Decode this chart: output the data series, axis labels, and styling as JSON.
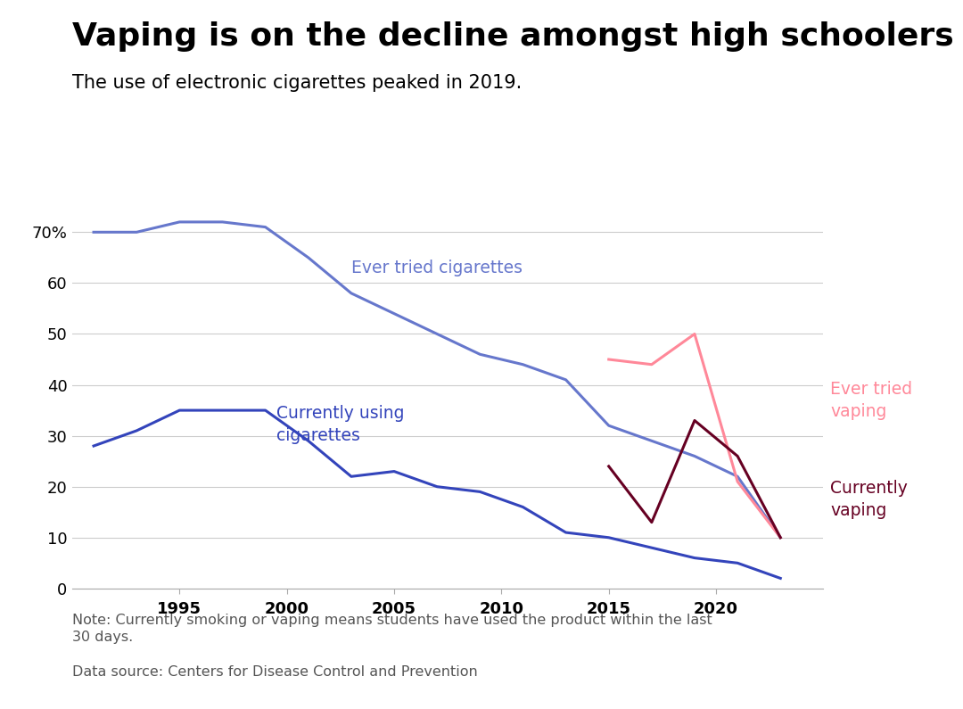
{
  "title": "Vaping is on the decline amongst high schoolers",
  "subtitle": "The use of electronic cigarettes peaked in 2019.",
  "note": "Note: Currently smoking or vaping means students have used the product within the last\n30 days.",
  "source": "Data source: Centers for Disease Control and Prevention",
  "ever_tried_cig_x": [
    1991,
    1993,
    1995,
    1997,
    1999,
    2001,
    2003,
    2005,
    2007,
    2009,
    2011,
    2013,
    2015,
    2017,
    2019,
    2021,
    2023
  ],
  "ever_tried_cig_y": [
    70,
    70,
    72,
    72,
    71,
    65,
    58,
    54,
    50,
    46,
    44,
    41,
    32,
    29,
    26,
    22,
    10
  ],
  "currently_cig_x": [
    1991,
    1993,
    1995,
    1997,
    1999,
    2001,
    2003,
    2005,
    2007,
    2009,
    2011,
    2013,
    2015,
    2017,
    2019,
    2021,
    2023
  ],
  "currently_cig_y": [
    28,
    31,
    35,
    35,
    35,
    29,
    22,
    23,
    20,
    19,
    16,
    11,
    10,
    8,
    6,
    5,
    2
  ],
  "ever_tried_vaping_x": [
    2015,
    2017,
    2019,
    2021,
    2023
  ],
  "ever_tried_vaping_y": [
    45,
    44,
    50,
    21,
    10
  ],
  "currently_vaping_x": [
    2015,
    2017,
    2019,
    2021,
    2023
  ],
  "currently_vaping_y": [
    24,
    13,
    33,
    26,
    10
  ],
  "ever_tried_cig_color": "#6677cc",
  "currently_cig_color": "#3344bb",
  "ever_tried_vaping_color": "#ff8899",
  "currently_vaping_color": "#660022",
  "background_color": "#ffffff",
  "grid_color": "#cccccc",
  "ylim": [
    0,
    78
  ],
  "yticks": [
    0,
    10,
    20,
    30,
    40,
    50,
    60,
    70
  ],
  "ytick_labels": [
    "0",
    "10",
    "20",
    "30",
    "40",
    "50",
    "60",
    "70%"
  ],
  "xlim": [
    1990,
    2025
  ],
  "xticks": [
    1995,
    2000,
    2005,
    2010,
    2015,
    2020
  ],
  "title_fontsize": 26,
  "subtitle_fontsize": 15,
  "label_fontsize": 13.5,
  "note_fontsize": 11.5,
  "tick_fontsize": 13
}
